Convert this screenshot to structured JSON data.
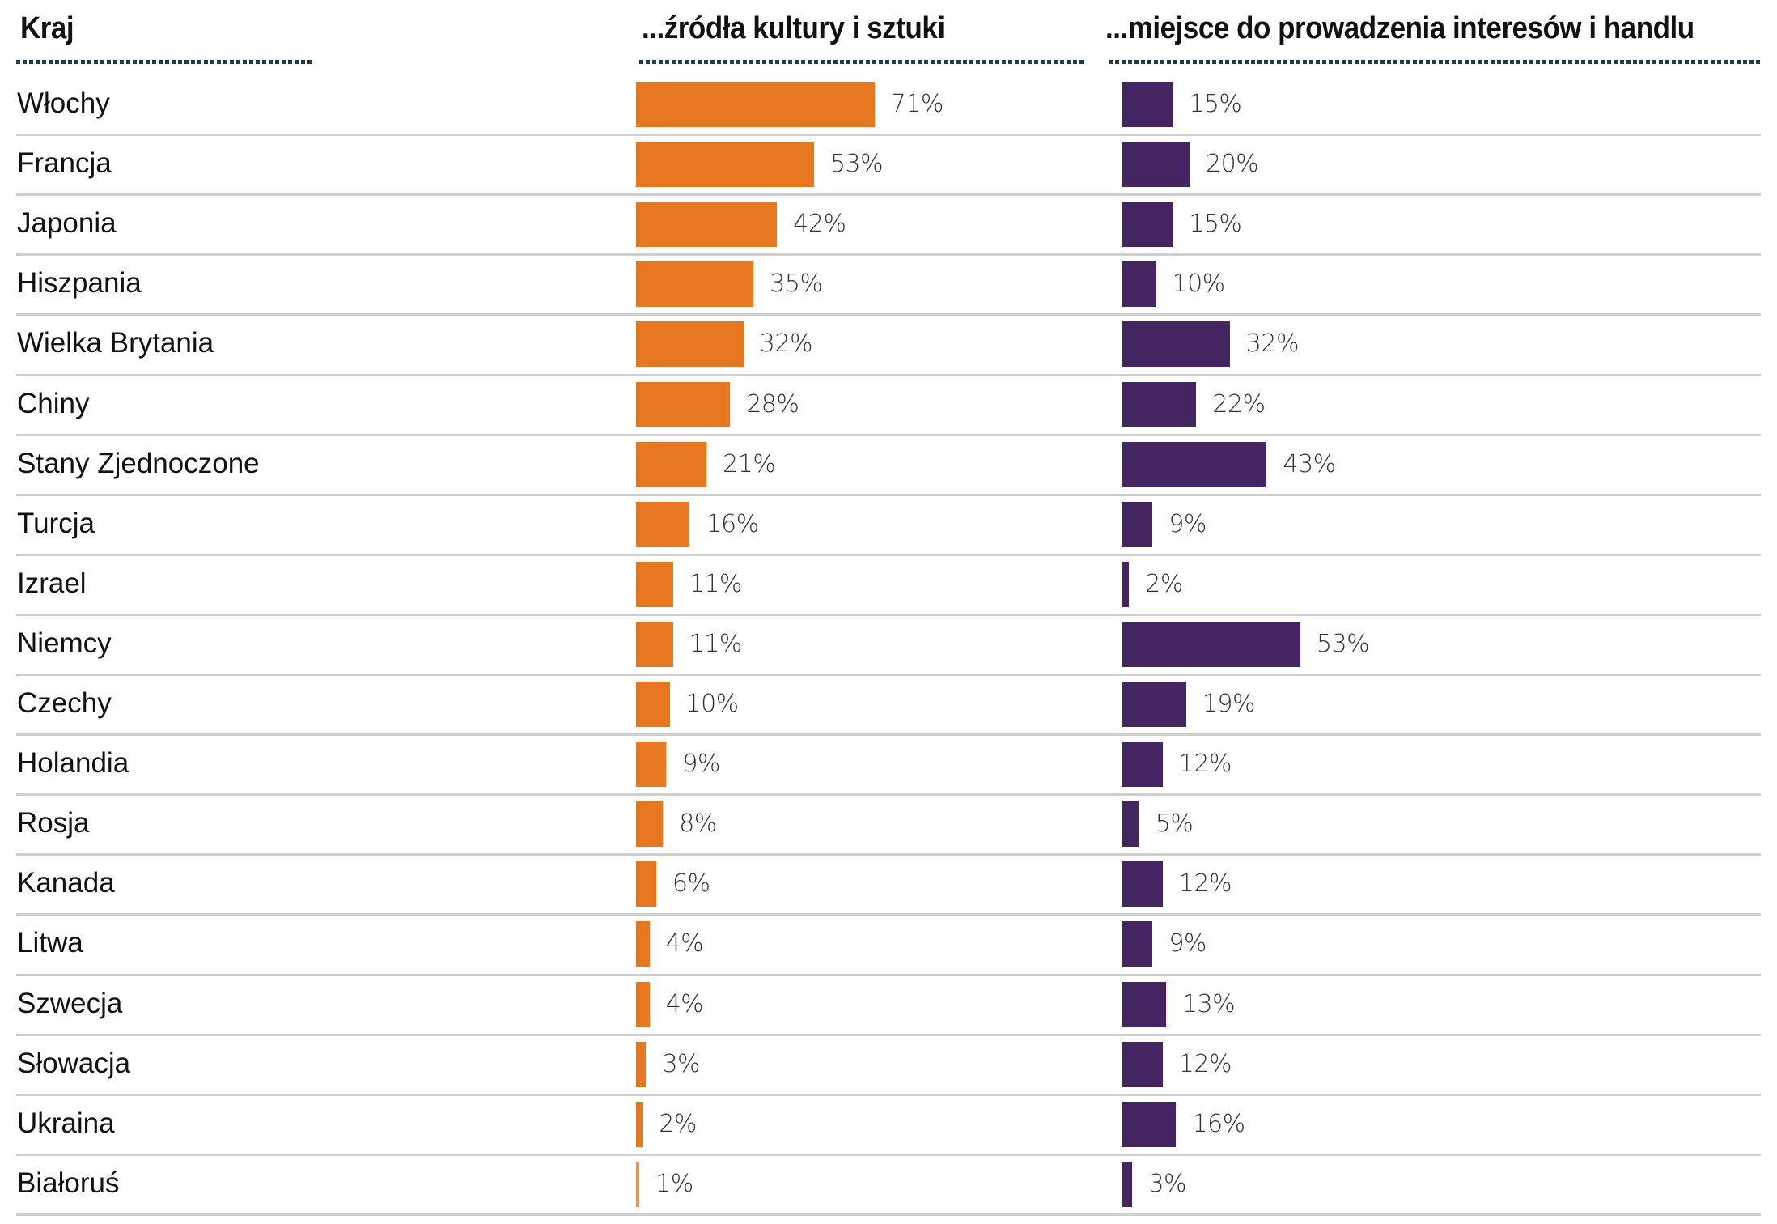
{
  "chart_data": {
    "type": "bar",
    "orientation": "horizontal",
    "headers": {
      "category": "Kraj",
      "culture": "...źródła kultury i sztuki",
      "business": "...miejsce do prowadzenia interesów i handlu"
    },
    "categories": [
      "Włochy",
      "Francja",
      "Japonia",
      "Hiszpania",
      "Wielka Brytania",
      "Chiny",
      "Stany Zjednoczone",
      "Turcja",
      "Izrael",
      "Niemcy",
      "Czechy",
      "Holandia",
      "Rosja",
      "Kanada",
      "Litwa",
      "Szwecja",
      "Słowacja",
      "Ukraina",
      "Białoruś"
    ],
    "series": [
      {
        "key": "culture",
        "color": "#e87722",
        "values": [
          71,
          53,
          42,
          35,
          32,
          28,
          21,
          16,
          11,
          11,
          10,
          9,
          8,
          6,
          4,
          4,
          3,
          2,
          1
        ]
      },
      {
        "key": "business",
        "color": "#452462",
        "values": [
          15,
          20,
          15,
          10,
          32,
          22,
          43,
          9,
          2,
          53,
          19,
          12,
          5,
          12,
          9,
          13,
          12,
          16,
          3
        ]
      }
    ],
    "value_suffix": "%",
    "grid": false,
    "legend": "none"
  }
}
